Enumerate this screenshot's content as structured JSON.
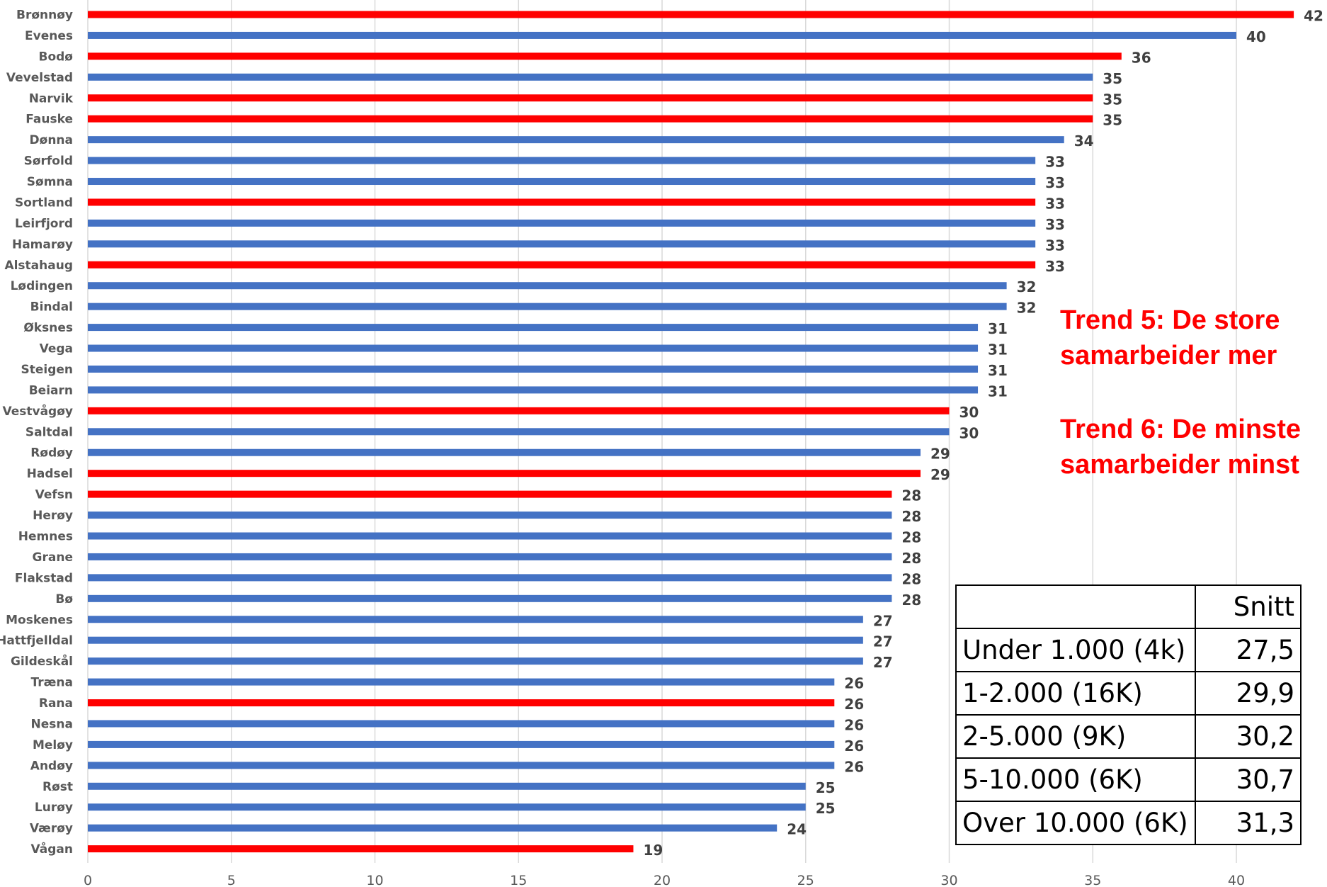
{
  "chart_data": {
    "type": "bar",
    "orientation": "horizontal",
    "categories": [
      "Brønnøy",
      "Evenes",
      "Bodø",
      "Vevelstad",
      "Narvik",
      "Fauske",
      "Dønna",
      "Sørfold",
      "Sømna",
      "Sortland",
      "Leirfjord",
      "Hamarøy",
      "Alstahaug",
      "Lødingen",
      "Bindal",
      "Øksnes",
      "Vega",
      "Steigen",
      "Beiarn",
      "Vestvågøy",
      "Saltdal",
      "Rødøy",
      "Hadsel",
      "Vefsn",
      "Herøy",
      "Hemnes",
      "Grane",
      "Flakstad",
      "Bø",
      "Moskenes",
      "Hattfjelldal",
      "Gildeskål",
      "Træna",
      "Rana",
      "Nesna",
      "Meløy",
      "Andøy",
      "Røst",
      "Lurøy",
      "Værøy",
      "Vågan"
    ],
    "values": [
      42,
      40,
      36,
      35,
      35,
      35,
      34,
      33,
      33,
      33,
      33,
      33,
      33,
      32,
      32,
      31,
      31,
      31,
      31,
      30,
      30,
      29,
      29,
      28,
      28,
      28,
      28,
      28,
      28,
      27,
      27,
      27,
      26,
      26,
      26,
      26,
      26,
      25,
      25,
      24,
      19
    ],
    "highlighted": [
      true,
      false,
      true,
      false,
      true,
      true,
      false,
      false,
      false,
      true,
      false,
      false,
      true,
      false,
      false,
      false,
      false,
      false,
      false,
      true,
      false,
      false,
      true,
      true,
      false,
      false,
      false,
      false,
      false,
      false,
      false,
      false,
      false,
      true,
      false,
      false,
      false,
      false,
      false,
      false,
      true
    ],
    "colors": {
      "default": "#4472c4",
      "highlight": "#ff0000"
    },
    "xlim": [
      0,
      42
    ],
    "xticks": [
      "0",
      "5",
      "10",
      "15",
      "20",
      "25",
      "30",
      "35",
      "40"
    ],
    "grid": true,
    "title": "",
    "xlabel": "",
    "ylabel": ""
  },
  "annotations": {
    "trend5_line1": "Trend 5: De store",
    "trend5_line2": "samarbeider mer",
    "trend6_line1": "Trend 6: De minste",
    "trend6_line2": "samarbeider minst"
  },
  "table": {
    "header": [
      "",
      "Snitt"
    ],
    "rows": [
      [
        "Under 1.000 (4k)",
        "27,5"
      ],
      [
        "1-2.000 (16K)",
        "29,9"
      ],
      [
        "2-5.000 (9K)",
        "30,2"
      ],
      [
        "5-10.000 (6K)",
        "30,7"
      ],
      [
        "Over 10.000 (6K)",
        "31,3"
      ]
    ]
  }
}
